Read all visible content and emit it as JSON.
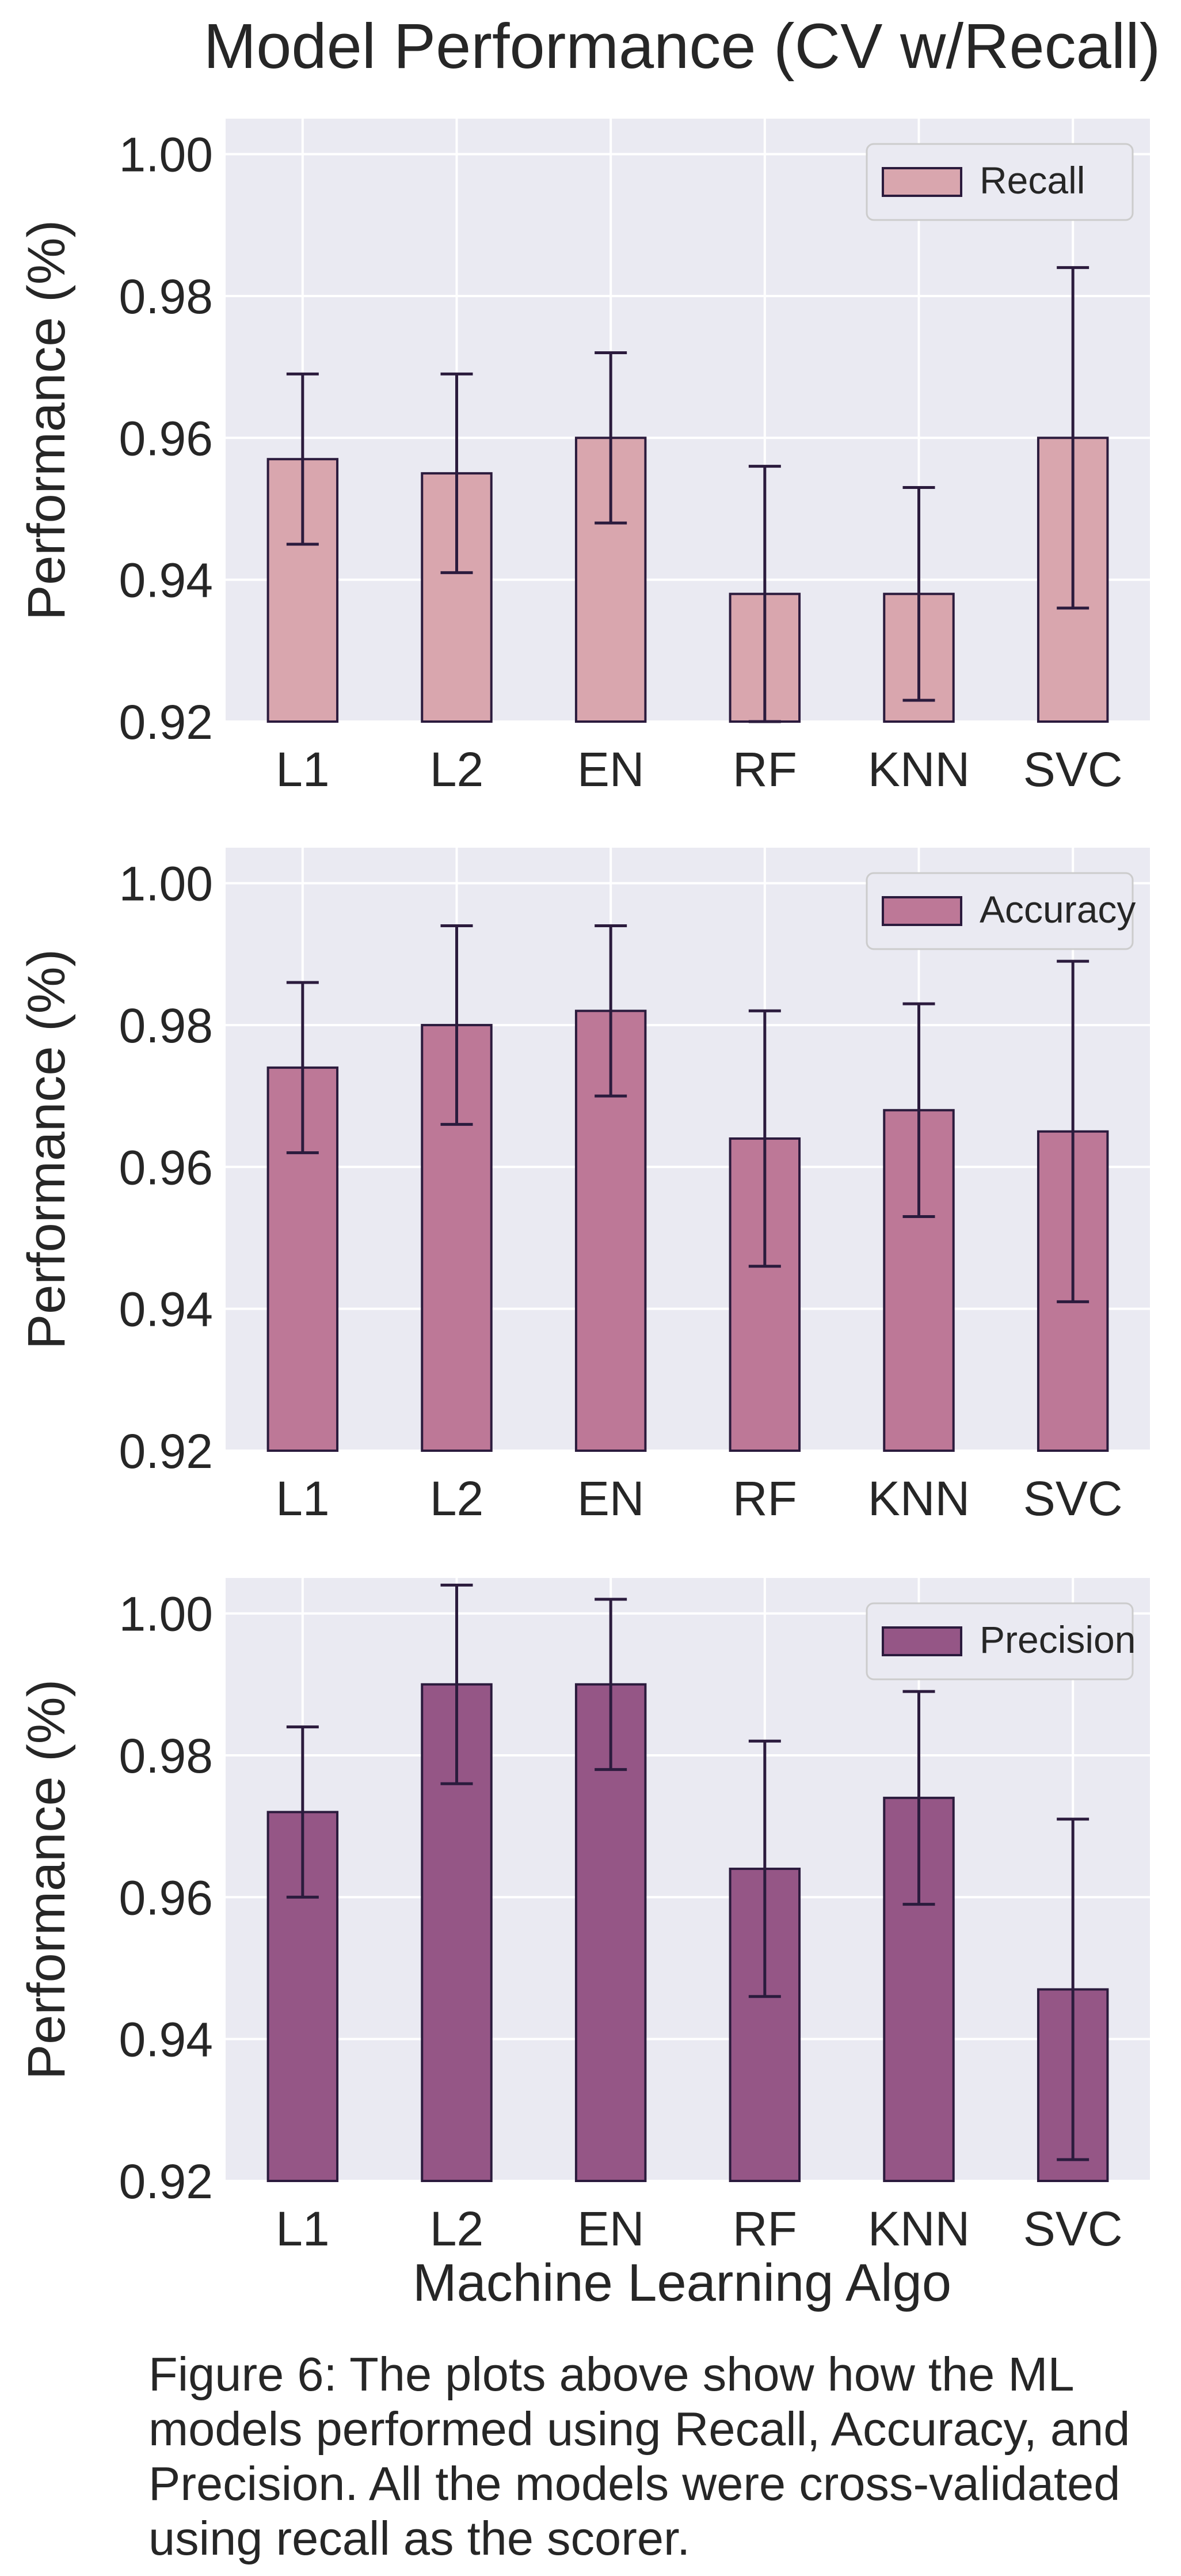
{
  "chart_data": {
    "type": "bar",
    "title": "Model Performance (CV w/Recall)",
    "xlabel": "Machine Learning Algo",
    "ylabel": "Performance (%)",
    "categories": [
      "L1",
      "L2",
      "EN",
      "RF",
      "KNN",
      "SVC"
    ],
    "ylim": [
      0.92,
      1.005
    ],
    "yticks": [
      "1.00",
      "0.98",
      "0.96",
      "0.94",
      "0.92"
    ],
    "grid": true,
    "legend_position": "top-right",
    "panels": [
      {
        "name": "Recall",
        "color": "#d9a6ae",
        "values": [
          0.957,
          0.955,
          0.96,
          0.938,
          0.938,
          0.96
        ],
        "error": [
          0.012,
          0.014,
          0.012,
          0.018,
          0.015,
          0.024
        ]
      },
      {
        "name": "Accuracy",
        "color": "#bd7897",
        "values": [
          0.974,
          0.98,
          0.982,
          0.964,
          0.968,
          0.965
        ],
        "error": [
          0.012,
          0.014,
          0.012,
          0.018,
          0.015,
          0.024
        ]
      },
      {
        "name": "Precision",
        "color": "#955686",
        "values": [
          0.972,
          0.99,
          0.99,
          0.964,
          0.974,
          0.947
        ],
        "error": [
          0.012,
          0.014,
          0.012,
          0.018,
          0.015,
          0.024
        ]
      }
    ],
    "colors": {
      "plot_background": "#eaeaf2",
      "grid": "#ffffff",
      "edge": "#2b1b3d",
      "text": "#262626"
    }
  },
  "caption": "Figure 6: The plots above show how the ML models performed using Recall, Accuracy, and Precision. All the models were cross-validated using recall as the scorer."
}
